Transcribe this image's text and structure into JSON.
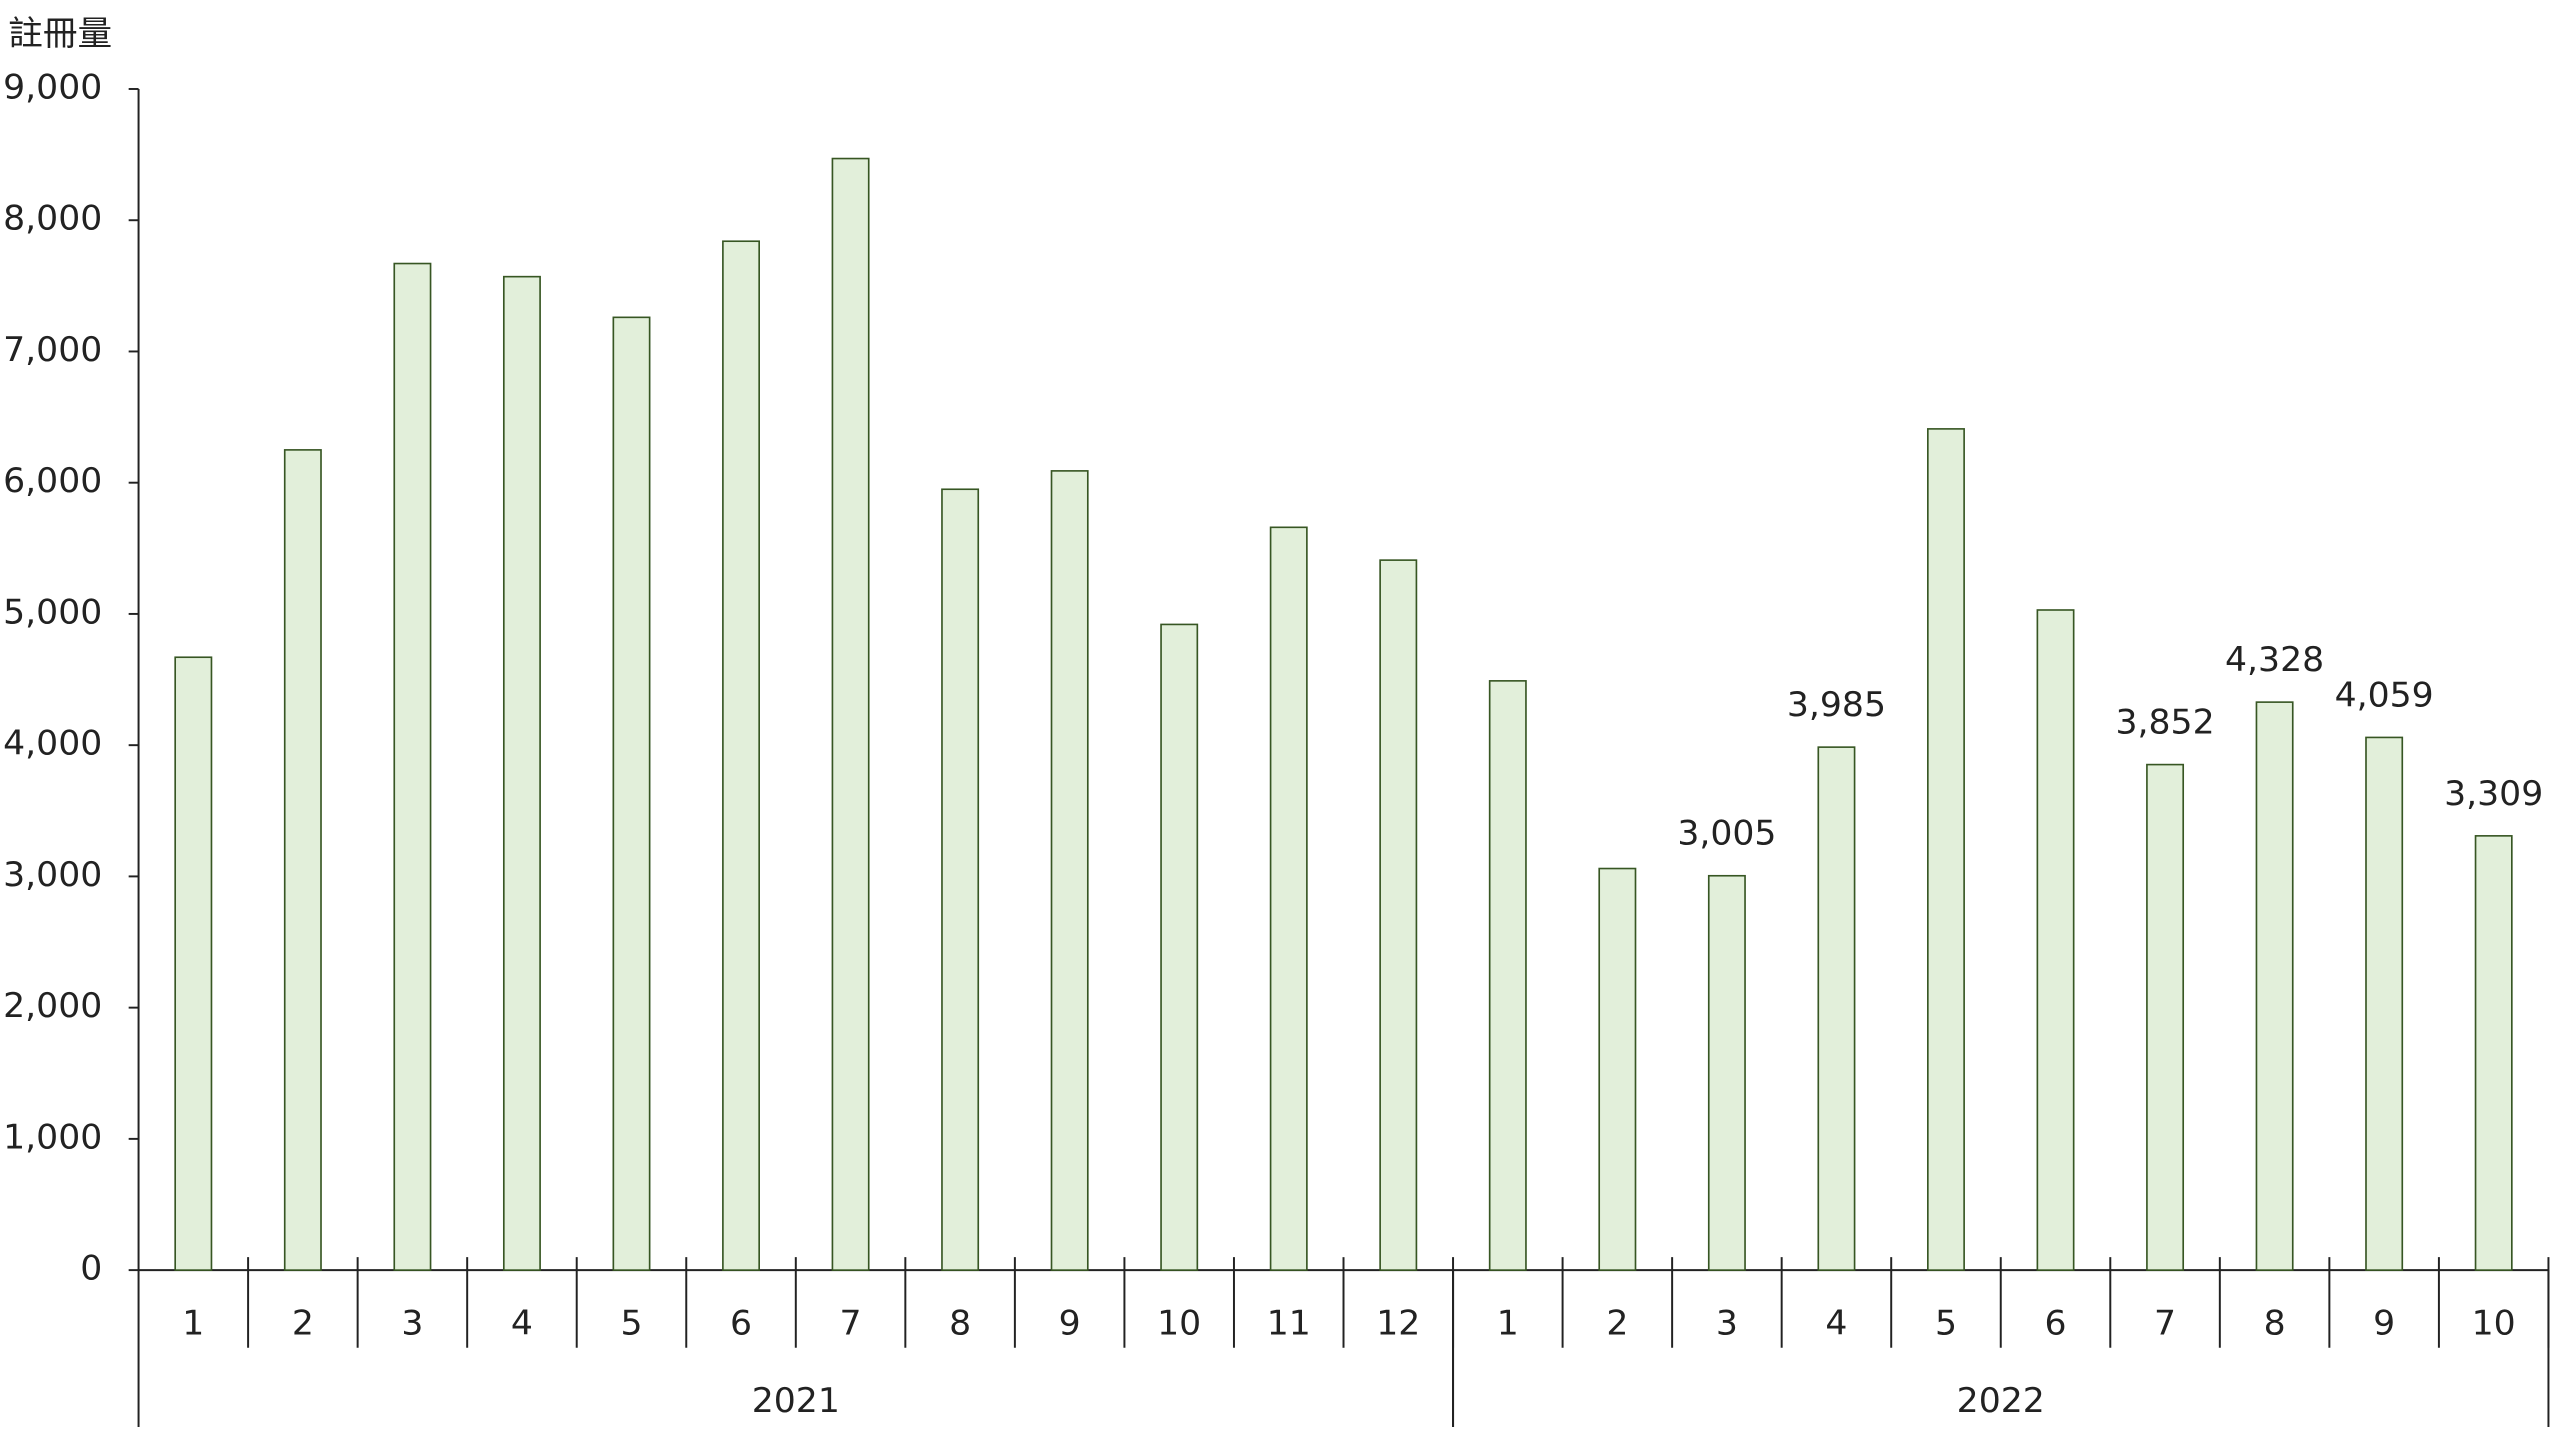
{
  "chart_data": {
    "type": "bar",
    "y_label": "註冊量",
    "groups": [
      {
        "label": "2021",
        "categories": [
          "1",
          "2",
          "3",
          "4",
          "5",
          "6",
          "7",
          "8",
          "9",
          "10",
          "11",
          "12"
        ]
      },
      {
        "label": "2022",
        "categories": [
          "1",
          "2",
          "3",
          "4",
          "5",
          "6",
          "7",
          "8",
          "9",
          "10"
        ]
      }
    ],
    "values": [
      4670,
      6250,
      7670,
      7570,
      7260,
      7840,
      8470,
      5950,
      6090,
      4920,
      5660,
      5410,
      4490,
      3060,
      3005,
      3985,
      6410,
      5030,
      3852,
      4328,
      4059,
      3309
    ],
    "value_labels": [
      null,
      null,
      null,
      null,
      null,
      null,
      null,
      null,
      null,
      null,
      null,
      null,
      null,
      null,
      "3,005",
      "3,985",
      null,
      null,
      "3,852",
      "4,328",
      "4,059",
      "3,309"
    ],
    "color": "#e2efda",
    "edge_color": "#375623",
    "ylim": [
      0,
      9000
    ],
    "yticks": [
      0,
      {
        "value": 1000,
        "label": "1,000"
      },
      {
        "value": 2000,
        "label": "2,000"
      },
      {
        "value": 3000,
        "label": "3,000"
      },
      {
        "value": 4000,
        "label": "4,000"
      },
      {
        "value": 5000,
        "label": "5,000"
      },
      {
        "value": 6000,
        "label": "6,000"
      },
      {
        "value": 7000,
        "label": "7,000"
      },
      {
        "value": 8000,
        "label": "8,000"
      },
      {
        "value": 9000,
        "label": "9,000"
      }
    ]
  }
}
